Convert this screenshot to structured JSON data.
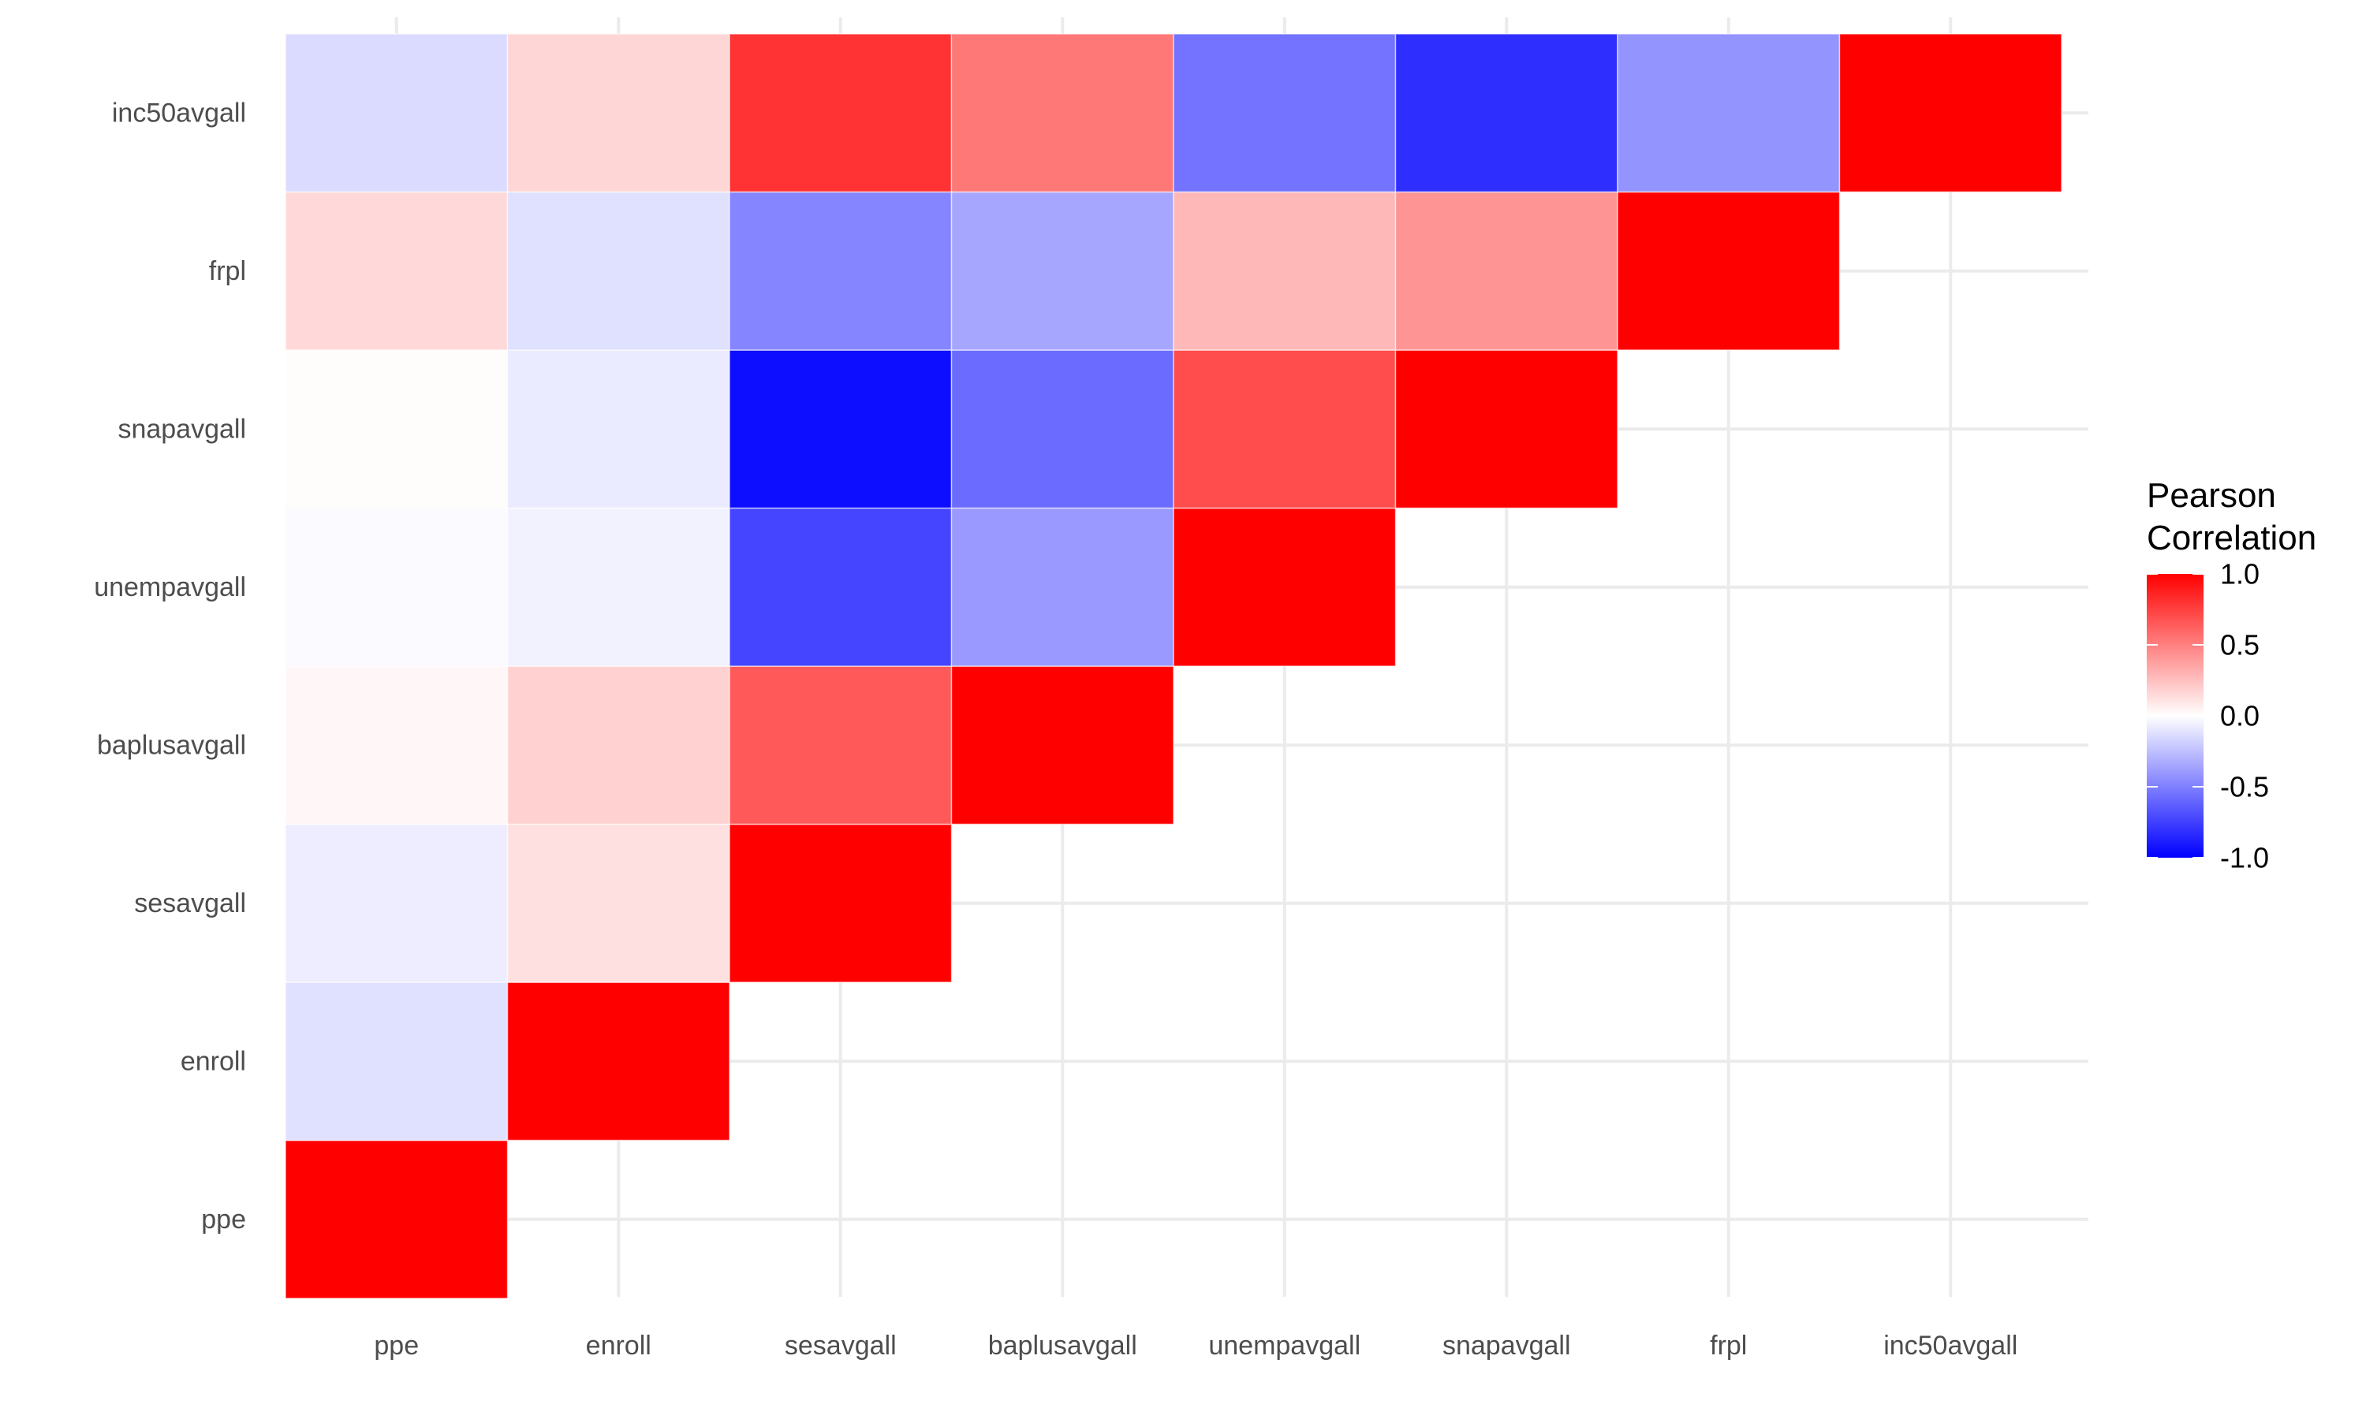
{
  "chart_data": {
    "type": "heatmap",
    "variables": [
      "ppe",
      "enroll",
      "sesavgall",
      "baplusavgall",
      "unempavgall",
      "snapavgall",
      "frpl",
      "inc50avgall"
    ],
    "x_categories": [
      "ppe",
      "enroll",
      "sesavgall",
      "baplusavgall",
      "unempavgall",
      "snapavgall",
      "frpl",
      "inc50avgall"
    ],
    "y_categories": [
      "ppe",
      "enroll",
      "sesavgall",
      "baplusavgall",
      "unempavgall",
      "snapavgall",
      "frpl",
      "inc50avgall"
    ],
    "triangle": "lower-left (x index <= y index)",
    "cells": [
      {
        "x": "ppe",
        "y": "ppe",
        "value": 1.0
      },
      {
        "x": "ppe",
        "y": "enroll",
        "value": -0.12
      },
      {
        "x": "ppe",
        "y": "sesavgall",
        "value": -0.07
      },
      {
        "x": "ppe",
        "y": "baplusavgall",
        "value": 0.03
      },
      {
        "x": "ppe",
        "y": "unempavgall",
        "value": -0.02
      },
      {
        "x": "ppe",
        "y": "snapavgall",
        "value": 0.01
      },
      {
        "x": "ppe",
        "y": "frpl",
        "value": 0.15
      },
      {
        "x": "ppe",
        "y": "inc50avgall",
        "value": -0.14
      },
      {
        "x": "enroll",
        "y": "enroll",
        "value": 1.0
      },
      {
        "x": "enroll",
        "y": "sesavgall",
        "value": 0.12
      },
      {
        "x": "enroll",
        "y": "baplusavgall",
        "value": 0.18
      },
      {
        "x": "enroll",
        "y": "unempavgall",
        "value": -0.05
      },
      {
        "x": "enroll",
        "y": "snapavgall",
        "value": -0.08
      },
      {
        "x": "enroll",
        "y": "frpl",
        "value": -0.12
      },
      {
        "x": "enroll",
        "y": "inc50avgall",
        "value": 0.16
      },
      {
        "x": "sesavgall",
        "y": "sesavgall",
        "value": 1.0
      },
      {
        "x": "sesavgall",
        "y": "baplusavgall",
        "value": 0.65
      },
      {
        "x": "sesavgall",
        "y": "unempavgall",
        "value": -0.73
      },
      {
        "x": "sesavgall",
        "y": "snapavgall",
        "value": -0.95
      },
      {
        "x": "sesavgall",
        "y": "frpl",
        "value": -0.48
      },
      {
        "x": "sesavgall",
        "y": "inc50avgall",
        "value": 0.8
      },
      {
        "x": "baplusavgall",
        "y": "baplusavgall",
        "value": 1.0
      },
      {
        "x": "baplusavgall",
        "y": "unempavgall",
        "value": -0.4
      },
      {
        "x": "baplusavgall",
        "y": "snapavgall",
        "value": -0.58
      },
      {
        "x": "baplusavgall",
        "y": "frpl",
        "value": -0.35
      },
      {
        "x": "baplusavgall",
        "y": "inc50avgall",
        "value": 0.53
      },
      {
        "x": "unempavgall",
        "y": "unempavgall",
        "value": 1.0
      },
      {
        "x": "unempavgall",
        "y": "snapavgall",
        "value": 0.7
      },
      {
        "x": "unempavgall",
        "y": "frpl",
        "value": 0.28
      },
      {
        "x": "unempavgall",
        "y": "inc50avgall",
        "value": -0.55
      },
      {
        "x": "snapavgall",
        "y": "snapavgall",
        "value": 1.0
      },
      {
        "x": "snapavgall",
        "y": "frpl",
        "value": 0.42
      },
      {
        "x": "snapavgall",
        "y": "inc50avgall",
        "value": -0.82
      },
      {
        "x": "frpl",
        "y": "frpl",
        "value": 1.0
      },
      {
        "x": "frpl",
        "y": "inc50avgall",
        "value": -0.42
      },
      {
        "x": "inc50avgall",
        "y": "inc50avgall",
        "value": 1.0
      }
    ],
    "color_scale": {
      "low": "#0000ff",
      "mid": "#ffffff",
      "high": "#ff0000",
      "limits": [
        -1,
        1
      ],
      "midpoint": 0
    },
    "legend": {
      "title": [
        "Pearson",
        "Correlation"
      ],
      "breaks": [
        1.0,
        0.5,
        0.0,
        -0.5,
        -1.0
      ],
      "labels": [
        "1.0",
        "0.5",
        "0.0",
        "-0.5",
        "-1.0"
      ],
      "position": "right"
    },
    "grid": true,
    "theme": "minimal",
    "xlabel": "",
    "ylabel": "",
    "title": ""
  }
}
